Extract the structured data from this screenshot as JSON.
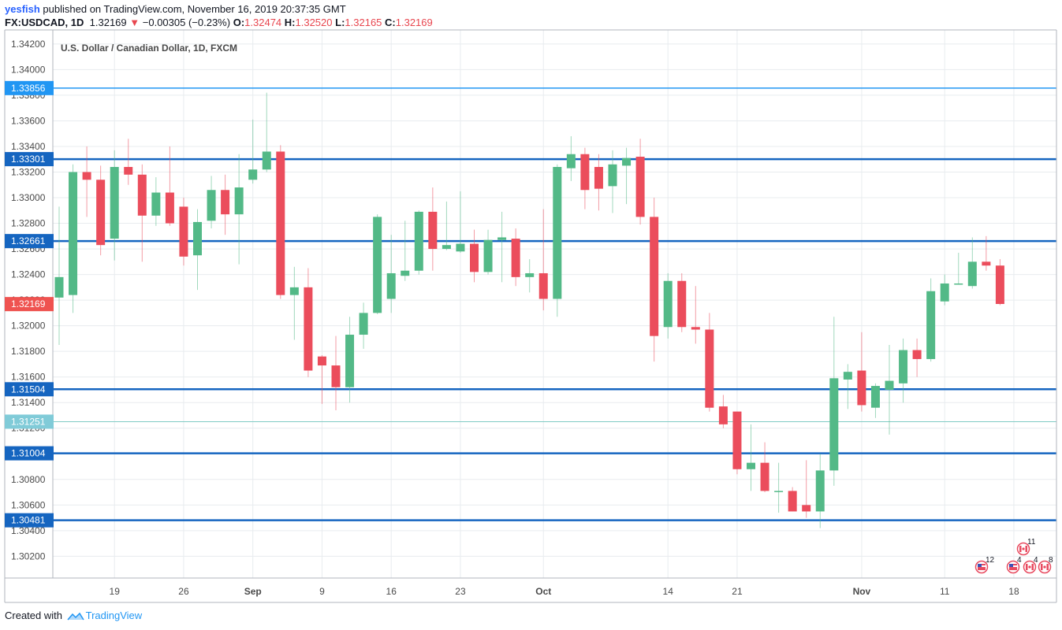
{
  "header": {
    "author": "yesfish",
    "published_text": " published on TradingView.com, November 16, 2019 20:37:35 GMT",
    "symbol": "FX:USDCAD, 1D",
    "last": "1.32169",
    "change": "−0.00305 (−0.23%)",
    "open_label": "O:",
    "open": "1.32474",
    "high_label": "H:",
    "high": "1.32520",
    "low_label": "L:",
    "low": "1.32165",
    "close_label": "C:",
    "close": "1.32169"
  },
  "footer": {
    "created_with": "Created with",
    "brand": "TradingView"
  },
  "chart_data": {
    "type": "candlestick",
    "title": "U.S. Dollar / Canadian Dollar, 1D, FXCM",
    "ylim": [
      1.3003,
      1.3431
    ],
    "y_ticks": [
      1.342,
      1.34,
      1.338,
      1.336,
      1.334,
      1.332,
      1.33,
      1.328,
      1.326,
      1.324,
      1.322,
      1.32,
      1.318,
      1.316,
      1.314,
      1.312,
      1.31,
      1.308,
      1.306,
      1.304,
      1.302
    ],
    "y_tick_labels": [
      "1.34200",
      "1.34000",
      "1.33800",
      "1.33600",
      "1.33400",
      "1.33200",
      "1.33000",
      "1.32800",
      "1.32600",
      "1.32400",
      "1.32200",
      "1.32000",
      "1.31800",
      "1.31600",
      "1.31400",
      "1.31200",
      "1.31000",
      "1.30800",
      "1.30600",
      "1.30400",
      "1.30200"
    ],
    "x_ticks": [
      {
        "label": "19",
        "index": 4
      },
      {
        "label": "26",
        "index": 9
      },
      {
        "label": "Sep",
        "index": 14
      },
      {
        "label": "9",
        "index": 19
      },
      {
        "label": "16",
        "index": 24
      },
      {
        "label": "23",
        "index": 29
      },
      {
        "label": "Oct",
        "index": 35
      },
      {
        "label": "14",
        "index": 44
      },
      {
        "label": "21",
        "index": 49
      },
      {
        "label": "Nov",
        "index": 58
      },
      {
        "label": "11",
        "index": 64
      },
      {
        "label": "18",
        "index": 69
      }
    ],
    "candles": [
      {
        "o": 1.3222,
        "h": 1.3293,
        "l": 1.3185,
        "c": 1.3238
      },
      {
        "o": 1.3224,
        "h": 1.3326,
        "l": 1.321,
        "c": 1.332
      },
      {
        "o": 1.332,
        "h": 1.334,
        "l": 1.3285,
        "c": 1.3314
      },
      {
        "o": 1.3314,
        "h": 1.3325,
        "l": 1.3255,
        "c": 1.3263
      },
      {
        "o": 1.3268,
        "h": 1.3337,
        "l": 1.3251,
        "c": 1.3324
      },
      {
        "o": 1.3324,
        "h": 1.3346,
        "l": 1.331,
        "c": 1.3318
      },
      {
        "o": 1.3318,
        "h": 1.3326,
        "l": 1.325,
        "c": 1.3286
      },
      {
        "o": 1.3286,
        "h": 1.3316,
        "l": 1.3278,
        "c": 1.3304
      },
      {
        "o": 1.3304,
        "h": 1.334,
        "l": 1.3278,
        "c": 1.328
      },
      {
        "o": 1.3293,
        "h": 1.33,
        "l": 1.3247,
        "c": 1.3254
      },
      {
        "o": 1.3255,
        "h": 1.3291,
        "l": 1.3228,
        "c": 1.3281
      },
      {
        "o": 1.3282,
        "h": 1.3317,
        "l": 1.3276,
        "c": 1.3306
      },
      {
        "o": 1.3306,
        "h": 1.3318,
        "l": 1.3271,
        "c": 1.3287
      },
      {
        "o": 1.3287,
        "h": 1.3334,
        "l": 1.3248,
        "c": 1.3308
      },
      {
        "o": 1.3314,
        "h": 1.3361,
        "l": 1.3311,
        "c": 1.3322
      },
      {
        "o": 1.3322,
        "h": 1.3382,
        "l": 1.332,
        "c": 1.3336
      },
      {
        "o": 1.3336,
        "h": 1.3341,
        "l": 1.3221,
        "c": 1.3224
      },
      {
        "o": 1.3224,
        "h": 1.3246,
        "l": 1.3189,
        "c": 1.323
      },
      {
        "o": 1.323,
        "h": 1.3245,
        "l": 1.316,
        "c": 1.3165
      },
      {
        "o": 1.3176,
        "h": 1.3177,
        "l": 1.3139,
        "c": 1.3169
      },
      {
        "o": 1.3169,
        "h": 1.3192,
        "l": 1.3134,
        "c": 1.3152
      },
      {
        "o": 1.3152,
        "h": 1.3207,
        "l": 1.314,
        "c": 1.3193
      },
      {
        "o": 1.3193,
        "h": 1.3218,
        "l": 1.3182,
        "c": 1.321
      },
      {
        "o": 1.321,
        "h": 1.3287,
        "l": 1.3209,
        "c": 1.3285
      },
      {
        "o": 1.3221,
        "h": 1.3271,
        "l": 1.321,
        "c": 1.3241
      },
      {
        "o": 1.3239,
        "h": 1.3282,
        "l": 1.3235,
        "c": 1.3243
      },
      {
        "o": 1.3243,
        "h": 1.329,
        "l": 1.324,
        "c": 1.3289
      },
      {
        "o": 1.3289,
        "h": 1.3308,
        "l": 1.3243,
        "c": 1.326
      },
      {
        "o": 1.326,
        "h": 1.3297,
        "l": 1.3259,
        "c": 1.3263
      },
      {
        "o": 1.3258,
        "h": 1.3305,
        "l": 1.3257,
        "c": 1.3264
      },
      {
        "o": 1.3264,
        "h": 1.3275,
        "l": 1.3234,
        "c": 1.3242
      },
      {
        "o": 1.3242,
        "h": 1.3275,
        "l": 1.324,
        "c": 1.3267
      },
      {
        "o": 1.3267,
        "h": 1.3289,
        "l": 1.3234,
        "c": 1.3269
      },
      {
        "o": 1.3268,
        "h": 1.3276,
        "l": 1.3231,
        "c": 1.3238
      },
      {
        "o": 1.3238,
        "h": 1.3252,
        "l": 1.3226,
        "c": 1.3241
      },
      {
        "o": 1.3241,
        "h": 1.3291,
        "l": 1.3212,
        "c": 1.3221
      },
      {
        "o": 1.3221,
        "h": 1.3326,
        "l": 1.3207,
        "c": 1.3324
      },
      {
        "o": 1.3323,
        "h": 1.3348,
        "l": 1.3313,
        "c": 1.3334
      },
      {
        "o": 1.3334,
        "h": 1.3339,
        "l": 1.3291,
        "c": 1.3306
      },
      {
        "o": 1.3324,
        "h": 1.3334,
        "l": 1.329,
        "c": 1.3307
      },
      {
        "o": 1.3309,
        "h": 1.3337,
        "l": 1.3288,
        "c": 1.3326
      },
      {
        "o": 1.3325,
        "h": 1.3339,
        "l": 1.3295,
        "c": 1.3331
      },
      {
        "o": 1.3332,
        "h": 1.3346,
        "l": 1.3279,
        "c": 1.3285
      },
      {
        "o": 1.3285,
        "h": 1.33,
        "l": 1.3172,
        "c": 1.3192
      },
      {
        "o": 1.3199,
        "h": 1.3241,
        "l": 1.319,
        "c": 1.3235
      },
      {
        "o": 1.3235,
        "h": 1.3241,
        "l": 1.3195,
        "c": 1.3199
      },
      {
        "o": 1.3199,
        "h": 1.3231,
        "l": 1.3186,
        "c": 1.3197
      },
      {
        "o": 1.3197,
        "h": 1.321,
        "l": 1.3133,
        "c": 1.3136
      },
      {
        "o": 1.3137,
        "h": 1.3146,
        "l": 1.312,
        "c": 1.3123
      },
      {
        "o": 1.3133,
        "h": 1.3133,
        "l": 1.3084,
        "c": 1.3088
      },
      {
        "o": 1.3088,
        "h": 1.3123,
        "l": 1.3071,
        "c": 1.3093
      },
      {
        "o": 1.3093,
        "h": 1.3109,
        "l": 1.307,
        "c": 1.3071
      },
      {
        "o": 1.3071,
        "h": 1.3093,
        "l": 1.3054,
        "c": 1.3071
      },
      {
        "o": 1.3071,
        "h": 1.3074,
        "l": 1.3055,
        "c": 1.3055
      },
      {
        "o": 1.306,
        "h": 1.3095,
        "l": 1.305,
        "c": 1.3055
      },
      {
        "o": 1.3055,
        "h": 1.31,
        "l": 1.3042,
        "c": 1.3087
      },
      {
        "o": 1.3087,
        "h": 1.3207,
        "l": 1.3075,
        "c": 1.3159
      },
      {
        "o": 1.3158,
        "h": 1.317,
        "l": 1.3135,
        "c": 1.3164
      },
      {
        "o": 1.3165,
        "h": 1.3195,
        "l": 1.3133,
        "c": 1.3138
      },
      {
        "o": 1.3136,
        "h": 1.3155,
        "l": 1.3128,
        "c": 1.3153
      },
      {
        "o": 1.315,
        "h": 1.3185,
        "l": 1.3115,
        "c": 1.3157
      },
      {
        "o": 1.3155,
        "h": 1.319,
        "l": 1.314,
        "c": 1.3181
      },
      {
        "o": 1.3181,
        "h": 1.319,
        "l": 1.316,
        "c": 1.3174
      },
      {
        "o": 1.3174,
        "h": 1.3237,
        "l": 1.3172,
        "c": 1.3227
      },
      {
        "o": 1.3219,
        "h": 1.324,
        "l": 1.3216,
        "c": 1.3233
      },
      {
        "o": 1.3233,
        "h": 1.3257,
        "l": 1.3232,
        "c": 1.3233
      },
      {
        "o": 1.3231,
        "h": 1.3269,
        "l": 1.3229,
        "c": 1.325
      },
      {
        "o": 1.325,
        "h": 1.327,
        "l": 1.3243,
        "c": 1.3247
      },
      {
        "o": 1.3247,
        "h": 1.3252,
        "l": 1.3216,
        "c": 1.3217
      }
    ],
    "horizontal_lines": [
      {
        "value": 1.33856,
        "label": "1.33856",
        "color": "#2196f3",
        "width": 1.5
      },
      {
        "value": 1.33301,
        "label": "1.33301",
        "color": "#1565c0",
        "width": 2.5
      },
      {
        "value": 1.32661,
        "label": "1.32661",
        "color": "#1565c0",
        "width": 2.5
      },
      {
        "value": 1.31504,
        "label": "1.31504",
        "color": "#1565c0",
        "width": 2.5
      },
      {
        "value": 1.31251,
        "label": "1.31251",
        "color": "#80cbc4",
        "width": 1,
        "label_bg": "#80cbd8"
      },
      {
        "value": 1.31004,
        "label": "1.31004",
        "color": "#1565c0",
        "width": 2.5
      },
      {
        "value": 1.30481,
        "label": "1.30481",
        "color": "#1565c0",
        "width": 2.5
      }
    ],
    "last_price": {
      "value": 1.32169,
      "label": "1.32169",
      "color": "#ef5350"
    },
    "colors": {
      "up": "#53b987",
      "down": "#eb4d5c",
      "grid": "#e8ecef",
      "axis_text": "#4a4a4a"
    },
    "event_markers": [
      {
        "flag": "us",
        "count": "12"
      },
      {
        "flag": "ca",
        "count": "11"
      },
      {
        "flag": "us",
        "count": "4"
      },
      {
        "flag": "ca",
        "count": "4"
      },
      {
        "flag": "ca",
        "count": "8"
      }
    ],
    "grid": true
  }
}
